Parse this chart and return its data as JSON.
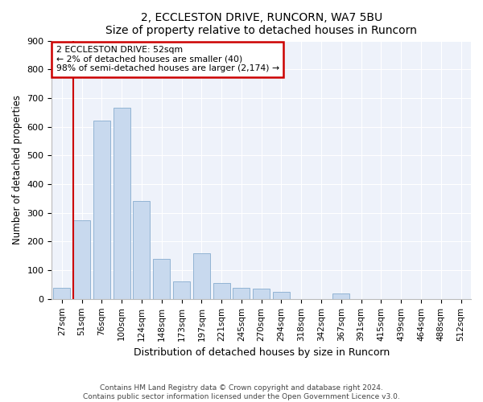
{
  "title": "2, ECCLESTON DRIVE, RUNCORN, WA7 5BU",
  "subtitle": "Size of property relative to detached houses in Runcorn",
  "xlabel": "Distribution of detached houses by size in Runcorn",
  "ylabel": "Number of detached properties",
  "bar_color": "#c8d9ee",
  "bar_edge_color": "#92b4d4",
  "background_color": "#eef2fa",
  "annotation_box_color": "#ffffff",
  "annotation_border_color": "#cc0000",
  "line_color": "#cc0000",
  "annotation_line1": "2 ECCLESTON DRIVE: 52sqm",
  "annotation_line2": "← 2% of detached houses are smaller (40)",
  "annotation_line3": "98% of semi-detached houses are larger (2,174) →",
  "categories": [
    "27sqm",
    "51sqm",
    "76sqm",
    "100sqm",
    "124sqm",
    "148sqm",
    "173sqm",
    "197sqm",
    "221sqm",
    "245sqm",
    "270sqm",
    "294sqm",
    "318sqm",
    "342sqm",
    "367sqm",
    "391sqm",
    "415sqm",
    "439sqm",
    "464sqm",
    "488sqm",
    "512sqm"
  ],
  "bar_heights": [
    40,
    275,
    620,
    665,
    340,
    140,
    60,
    160,
    55,
    40,
    35,
    25,
    0,
    0,
    20,
    0,
    0,
    0,
    0,
    0,
    0
  ],
  "ylim": [
    0,
    900
  ],
  "yticks": [
    0,
    100,
    200,
    300,
    400,
    500,
    600,
    700,
    800,
    900
  ],
  "red_line_x": 0.56,
  "footer_line1": "Contains HM Land Registry data © Crown copyright and database right 2024.",
  "footer_line2": "Contains public sector information licensed under the Open Government Licence v3.0."
}
